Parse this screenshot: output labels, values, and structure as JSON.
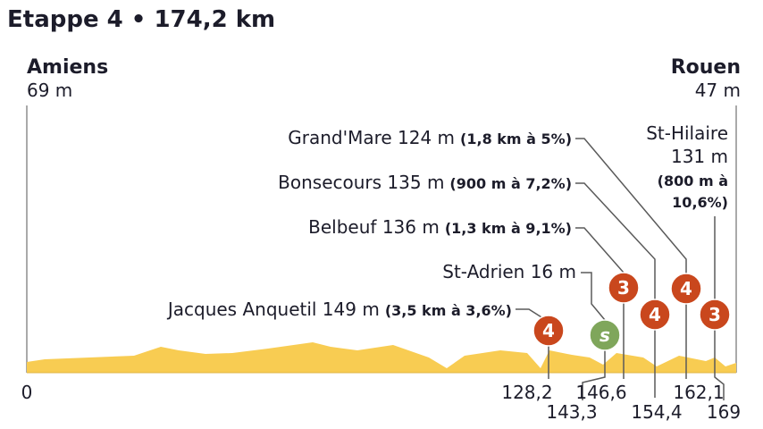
{
  "title": "Etappe 4 • 174,2 km",
  "start": {
    "name": "Amiens",
    "altitude": "69 m",
    "km": "0"
  },
  "finish": {
    "name": "Rouen",
    "altitude": "47 m"
  },
  "climbs": [
    {
      "name": "Jacques Anquetil 149 m",
      "detail": "(3,5 km à 3,6%)",
      "category": "4",
      "km": "128,2"
    },
    {
      "name": "St-Adrien 16 m",
      "category": "s",
      "km": "143,3"
    },
    {
      "name": "Belbeuf 136 m",
      "detail": "(1,3 km à 9,1%)",
      "category": "3",
      "km": "146,6"
    },
    {
      "name": "Bonsecours 135 m",
      "detail": "(900 m à 7,2%)",
      "category": "4",
      "km": "154,4"
    },
    {
      "name": "Grand'Mare 124 m",
      "detail": "(1,8 km à 5%)",
      "category": "4",
      "km": "162,1"
    },
    {
      "name": [
        "St-Hilaire",
        "131 m"
      ],
      "detail": [
        "(800 m à",
        "10,6%)"
      ],
      "category": "3",
      "km": "169"
    }
  ]
}
